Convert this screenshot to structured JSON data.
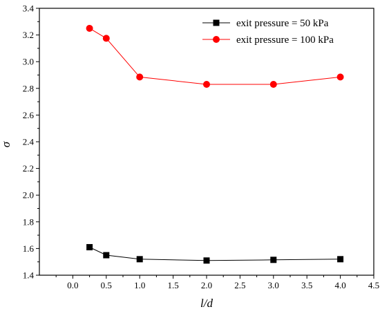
{
  "chart_data": {
    "type": "line",
    "xlabel": "l/d",
    "ylabel": "σ",
    "xlim": [
      -0.5,
      4.5
    ],
    "ylim": [
      1.4,
      3.4
    ],
    "xticks": [
      0.0,
      0.5,
      1.0,
      1.5,
      2.0,
      2.5,
      3.0,
      3.5,
      4.0,
      4.5
    ],
    "xtick_labels": [
      "0.0",
      "0.5",
      "1.0",
      "1.5",
      "2.0",
      "2.5",
      "3.0",
      "3.5",
      "4.0",
      "4.5"
    ],
    "yticks": [
      1.4,
      1.6,
      1.8,
      2.0,
      2.2,
      2.4,
      2.6,
      2.8,
      3.0,
      3.2,
      3.4
    ],
    "ytick_labels": [
      "1.4",
      "1.6",
      "1.8",
      "2.0",
      "2.2",
      "2.4",
      "2.6",
      "2.8",
      "3.0",
      "3.2",
      "3.4"
    ],
    "grid": false,
    "legend_position": "top-right",
    "series": [
      {
        "name": "exit pressure = 50 kPa",
        "color": "#000000",
        "marker": "square",
        "x": [
          0.25,
          0.5,
          1.0,
          2.0,
          3.0,
          4.0
        ],
        "y": [
          1.61,
          1.55,
          1.52,
          1.51,
          1.515,
          1.52
        ]
      },
      {
        "name": "exit pressure = 100 kPa",
        "color": "#ff0000",
        "marker": "circle",
        "x": [
          0.25,
          0.5,
          1.0,
          2.0,
          3.0,
          4.0
        ],
        "y": [
          3.25,
          3.175,
          2.885,
          2.83,
          2.83,
          2.885
        ]
      }
    ]
  }
}
